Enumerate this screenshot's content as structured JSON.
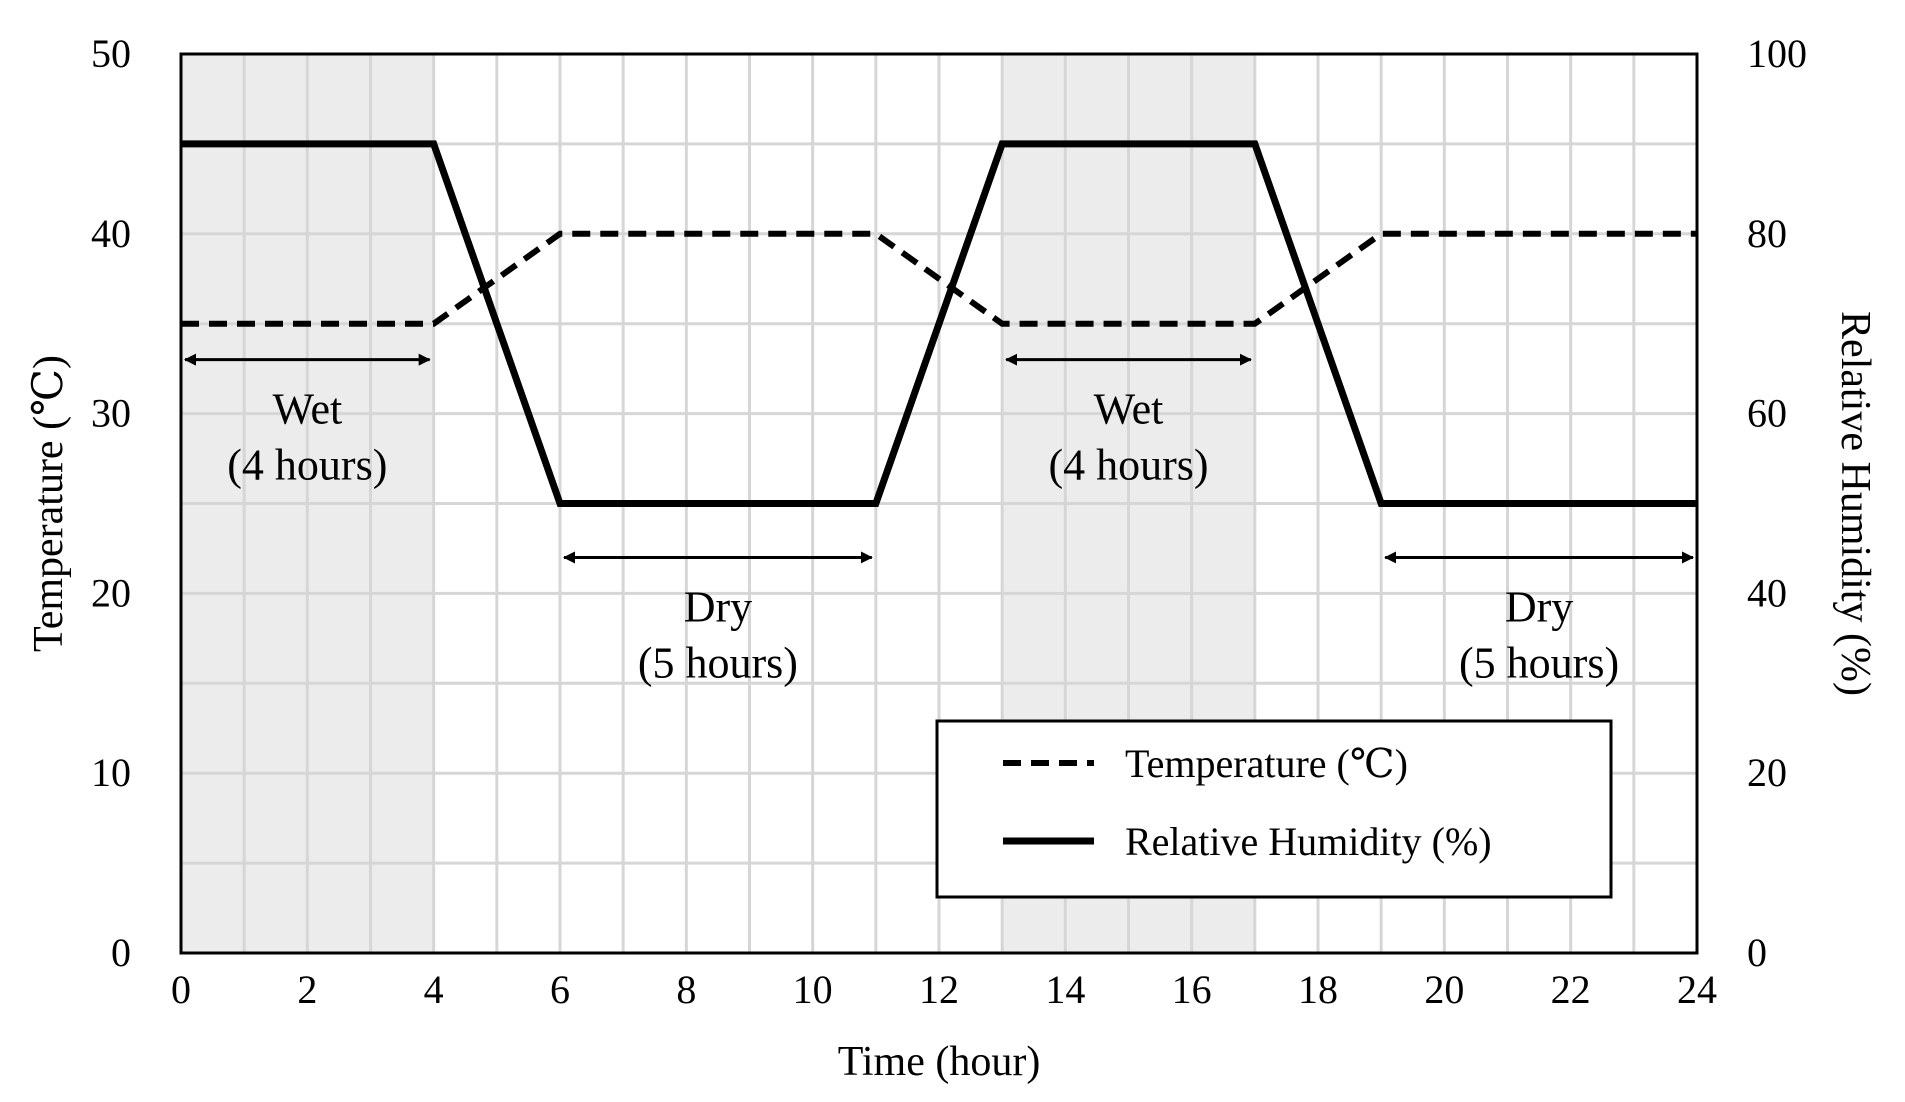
{
  "chart_data": {
    "type": "line",
    "title": "",
    "xlabel": "Time (hour)",
    "ylabel": "Temperature (℃)",
    "y2label": "Relative Humidity (%)",
    "xlim": [
      0,
      24
    ],
    "ylim": [
      0,
      50
    ],
    "y2lim": [
      0,
      100
    ],
    "x_ticks": [
      "0",
      "2",
      "4",
      "6",
      "8",
      "10",
      "12",
      "14",
      "16",
      "18",
      "20",
      "22",
      "24"
    ],
    "y_ticks": [
      "0",
      "10",
      "20",
      "30",
      "40",
      "50"
    ],
    "y2_ticks": [
      "0",
      "20",
      "40",
      "60",
      "80",
      "100"
    ],
    "grid": true,
    "shaded_intervals": [
      {
        "label": "Wet",
        "x0": 0,
        "x1": 4
      },
      {
        "label": "Wet",
        "x0": 13,
        "x1": 17
      }
    ],
    "series": [
      {
        "name": "Temperature (℃)",
        "axis": "left",
        "style": "dashed",
        "x": [
          0,
          4,
          6,
          11,
          13,
          17,
          19,
          24
        ],
        "values": [
          35,
          35,
          40,
          40,
          35,
          35,
          40,
          40
        ]
      },
      {
        "name": "Relative Humidity (%)",
        "axis": "right",
        "style": "solid",
        "x": [
          0,
          4,
          6,
          11,
          13,
          17,
          19,
          24
        ],
        "values": [
          90,
          90,
          50,
          50,
          90,
          90,
          50,
          50
        ]
      }
    ],
    "annotations": [
      {
        "line1": "Wet",
        "line2": "(4 hours)",
        "x_start": 0,
        "x_end": 4,
        "y": 33
      },
      {
        "line1": "Dry",
        "line2": "(5 hours)",
        "x_start": 6,
        "x_end": 11,
        "y": 22
      },
      {
        "line1": "Wet",
        "line2": "(4 hours)",
        "x_start": 13,
        "x_end": 17,
        "y": 33
      },
      {
        "line1": "Dry",
        "line2": "(5 hours)",
        "x_start": 19,
        "x_end": 24,
        "y": 22
      }
    ],
    "legend": {
      "position": "bottom-right"
    }
  }
}
